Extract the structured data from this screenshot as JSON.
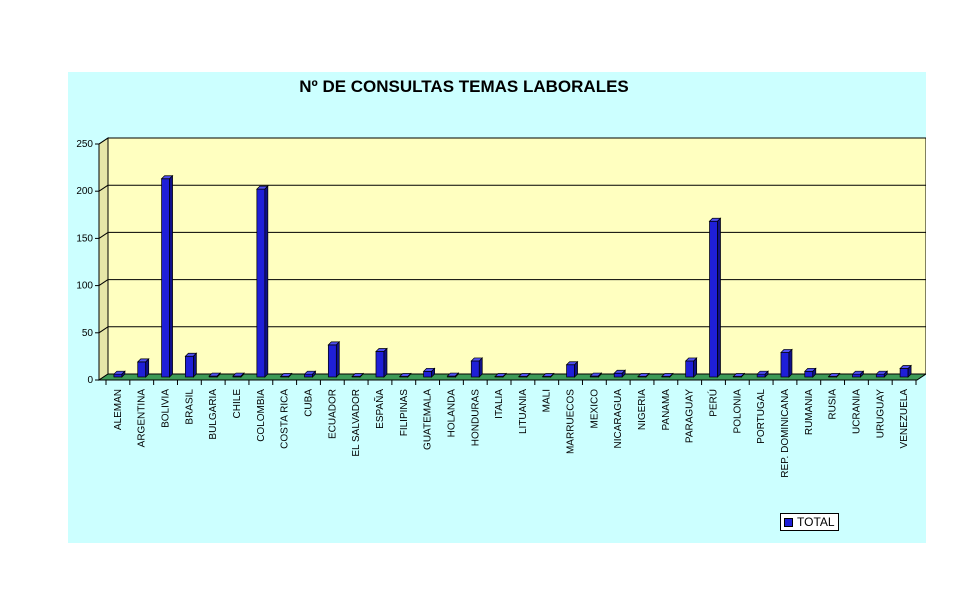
{
  "chart_data": {
    "type": "bar",
    "title": "Nº DE CONSULTAS TEMAS LABORALES",
    "xlabel": "",
    "ylabel": "",
    "ylim": [
      0,
      250
    ],
    "yticks": [
      0,
      50,
      100,
      150,
      200,
      250
    ],
    "grid": true,
    "legend_position": "bottom-right",
    "categories": [
      "ALEMAN",
      "ARGENTINA",
      "BOLIVIA",
      "BRASIL",
      "BULGARIA",
      "CHILE",
      "COLOMBIA",
      "COSTA RICA",
      "CUBA",
      "ECUADOR",
      "EL SALVADOR",
      "ESPAÑA",
      "FILIPINAS",
      "GUATEMALA",
      "HOLANDA",
      "HONDURAS",
      "ITALIA",
      "LITUANIA",
      "MALI",
      "MARRUECOS",
      "MEXICO",
      "NICARAGUA",
      "NIGERIA",
      "PANAMA",
      "PARAGUAY",
      "PERÚ",
      "POLONIA",
      "PORTUGAL",
      "REP. DOMINICANA",
      "RUMANIA",
      "RUSIA",
      "UCRANIA",
      "URUGUAY",
      "VENEZUELA"
    ],
    "series": [
      {
        "name": "TOTAL",
        "color": "#1f1fd8",
        "values": [
          3,
          16,
          210,
          22,
          1,
          1,
          199,
          0,
          3,
          34,
          0,
          27,
          0,
          6,
          1,
          17,
          0,
          0,
          0,
          13,
          1,
          4,
          0,
          0,
          17,
          165,
          0,
          3,
          26,
          6,
          0,
          3,
          3,
          9
        ]
      }
    ]
  },
  "colors": {
    "frame_background": "#ccffff",
    "plot_background": "#ffffc0",
    "floor": "#3d9a57",
    "bar": "#1f1fd8"
  }
}
